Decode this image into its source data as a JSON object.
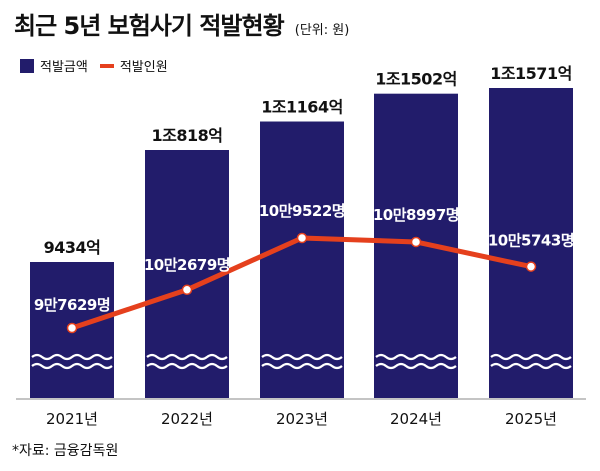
{
  "header": {
    "title": "최근 5년 보험사기 적발현황",
    "unit": "(단위: 원)"
  },
  "legend": {
    "bar_label": "적발금액",
    "line_label": "적발인원"
  },
  "source": "*자료: 금융감독원",
  "colors": {
    "bar": "#221c6b",
    "line": "#e5401d",
    "wave": "#ffffff"
  },
  "chart_data": {
    "type": "bar",
    "categories": [
      "2021년",
      "2022년",
      "2023년",
      "2024년",
      "2025년"
    ],
    "series": [
      {
        "name": "적발금액",
        "type": "bar",
        "values": [
          9434,
          10818,
          11164,
          11502,
          11571
        ],
        "labels": [
          "9434억",
          "1조818억",
          "1조1164억",
          "1조1502억",
          "1조1571억"
        ]
      },
      {
        "name": "적발인원",
        "type": "line",
        "values": [
          97629,
          102679,
          109522,
          108997,
          105743
        ],
        "labels": [
          "9만7629명",
          "10만2679명",
          "10만9522명",
          "10만8997명",
          "10만5743명"
        ]
      }
    ],
    "axis_break": true,
    "grid": false
  }
}
